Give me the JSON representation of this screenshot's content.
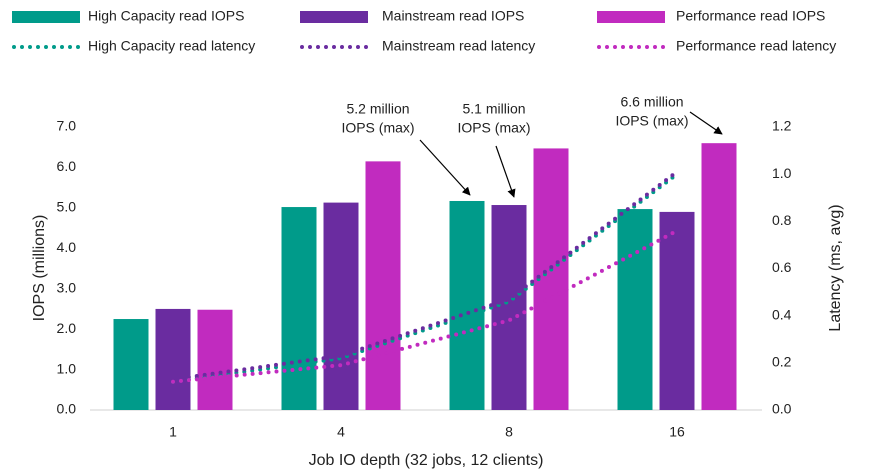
{
  "chart_data": {
    "type": "bar_line",
    "categories": [
      "1",
      "4",
      "8",
      "16"
    ],
    "series": [
      {
        "name": "High Capacity read IOPS",
        "color": "#009b8a",
        "type": "bar",
        "values": [
          2.25,
          5.02,
          5.17,
          4.97
        ]
      },
      {
        "name": "Mainstream read IOPS",
        "color": "#6a2ca0",
        "type": "bar",
        "values": [
          2.5,
          5.13,
          5.07,
          4.9
        ]
      },
      {
        "name": "Performance read IOPS",
        "color": "#c12bbf",
        "type": "bar",
        "values": [
          2.48,
          6.15,
          6.47,
          6.6
        ]
      },
      {
        "name": "High Capacity read latency",
        "color": "#009b8a",
        "type": "line",
        "axis": "y2",
        "values": [
          0.12,
          0.22,
          0.46,
          1.0
        ]
      },
      {
        "name": "Mainstream read latency",
        "color": "#6a2ca0",
        "type": "line",
        "axis": "y2",
        "values": [
          0.13,
          0.23,
          0.47,
          1.01
        ]
      },
      {
        "name": "Performance read latency",
        "color": "#c12bbf",
        "type": "line",
        "axis": "y2",
        "values": [
          0.12,
          0.19,
          0.38,
          0.76
        ]
      }
    ],
    "ylim": [
      0,
      7
    ],
    "yticks": [
      {
        "value": 0,
        "label": "0.0"
      },
      {
        "value": 1,
        "label": "1.0"
      },
      {
        "value": 2,
        "label": "2.0"
      },
      {
        "value": 3,
        "label": "3.0"
      },
      {
        "value": 4,
        "label": "4.0"
      },
      {
        "value": 5,
        "label": "5.0"
      },
      {
        "value": 6,
        "label": "6.0"
      },
      {
        "value": 7,
        "label": "7.0"
      }
    ],
    "y2lim": [
      0,
      1.2
    ],
    "y2ticks": [
      {
        "value": 0,
        "label": "0.0"
      },
      0.2,
      0.4,
      0.6,
      0.8,
      {
        "value": 1,
        "label": "1.0"
      },
      1.2
    ],
    "ylabel": "IOPS (millions)",
    "y2label": "Latency (ms, avg)",
    "xlabel": "Job IO depth (32 jobs, 12 clients)",
    "annotations": [
      {
        "lines": [
          "5.2 million",
          "IOPS (max)"
        ]
      },
      {
        "lines": [
          "5.1 million",
          "IOPS (max)"
        ]
      },
      {
        "lines": [
          "6.6 million",
          "IOPS (max)"
        ]
      }
    ]
  }
}
